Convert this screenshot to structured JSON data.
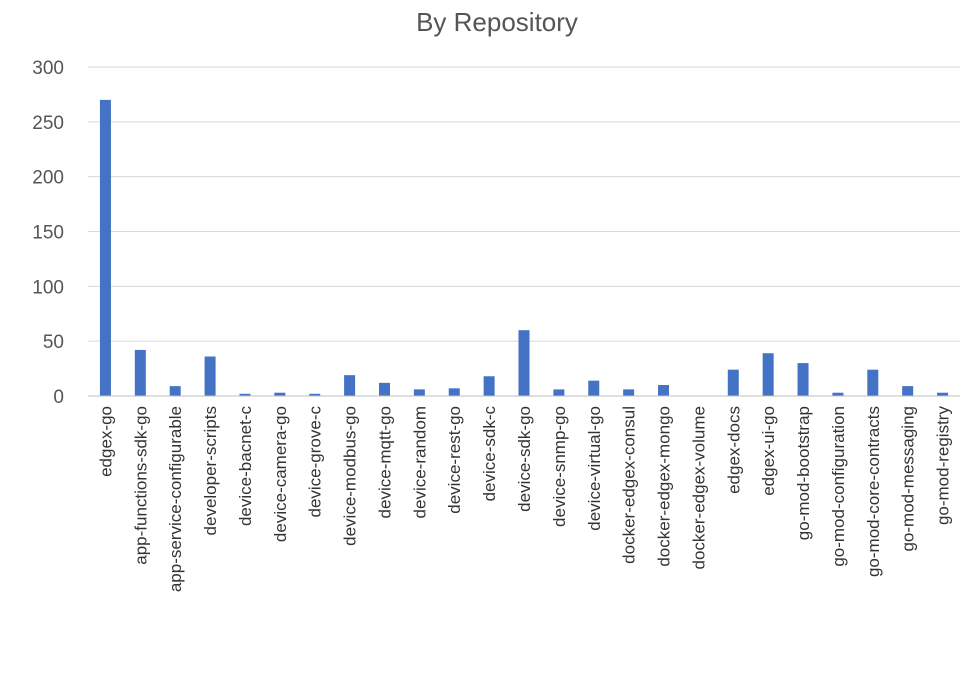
{
  "chart_data": {
    "type": "bar",
    "title": "By Repository",
    "xlabel": "",
    "ylabel": "",
    "ylim": [
      0,
      300
    ],
    "yticks": [
      0,
      50,
      100,
      150,
      200,
      250,
      300
    ],
    "grid": true,
    "legend": "none",
    "bar_color": "#4472c4",
    "categories": [
      "edgex-go",
      "app-functions-sdk-go",
      "app-service-configurable",
      "developer-scripts",
      "device-bacnet-c",
      "device-camera-go",
      "device-grove-c",
      "device-modbus-go",
      "device-mqtt-go",
      "device-random",
      "device-rest-go",
      "device-sdk-c",
      "device-sdk-go",
      "device-snmp-go",
      "device-virtual-go",
      "docker-edgex-consul",
      "docker-edgex-mongo",
      "docker-edgex-volume",
      "edgex-docs",
      "edgex-ui-go",
      "go-mod-bootstrap",
      "go-mod-configuration",
      "go-mod-core-contracts",
      "go-mod-messaging",
      "go-mod-registry"
    ],
    "values": [
      270,
      42,
      9,
      36,
      2,
      3,
      2,
      19,
      12,
      6,
      7,
      18,
      60,
      6,
      14,
      6,
      10,
      0,
      24,
      39,
      30,
      3,
      24,
      9,
      3
    ]
  }
}
